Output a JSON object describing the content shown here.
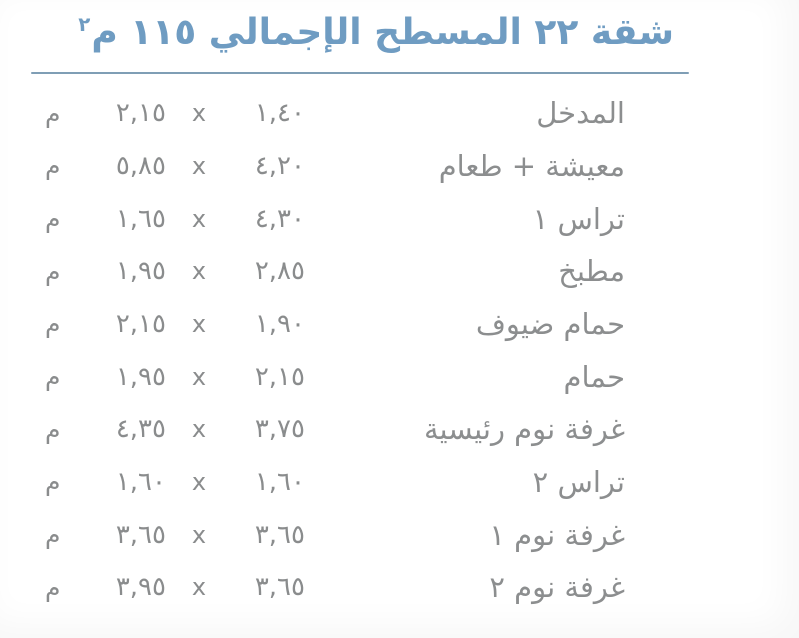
{
  "header": {
    "title_main": "شقة ٢٢ المسطح الإجمالي ١١٥ م",
    "title_superscript": "٢"
  },
  "labels": {
    "separator": "x"
  },
  "colors": {
    "title_blue": "#6f9cc2",
    "divider_blue": "#7f9eb5",
    "text_gray": "#8a8c8d"
  },
  "rooms": [
    {
      "name": "المدخل",
      "dim1": "١,٤٠",
      "dim2": "٢,١٥",
      "unit": "م"
    },
    {
      "name": "معيشة + طعام",
      "dim1": "٤,٢٠",
      "dim2": "٥,٨٥",
      "unit": "م"
    },
    {
      "name": "تراس ١",
      "dim1": "٤,٣٠",
      "dim2": "١,٦٥",
      "unit": "م"
    },
    {
      "name": "مطبخ",
      "dim1": "٢,٨٥",
      "dim2": "١,٩٥",
      "unit": "م"
    },
    {
      "name": "حمام ضيوف",
      "dim1": "١,٩٠",
      "dim2": "٢,١٥",
      "unit": "م"
    },
    {
      "name": "حمام",
      "dim1": "٢,١٥",
      "dim2": "١,٩٥",
      "unit": "م"
    },
    {
      "name": "غرفة نوم رئيسية",
      "dim1": "٣,٧٥",
      "dim2": "٤,٣٥",
      "unit": "م"
    },
    {
      "name": "تراس ٢",
      "dim1": "١,٦٠",
      "dim2": "١,٦٠",
      "unit": "م"
    },
    {
      "name": "غرفة نوم ١",
      "dim1": "٣,٦٥",
      "dim2": "٣,٦٥",
      "unit": "م"
    },
    {
      "name": "غرفة نوم ٢",
      "dim1": "٣,٦٥",
      "dim2": "٣,٩٥",
      "unit": "م"
    }
  ]
}
